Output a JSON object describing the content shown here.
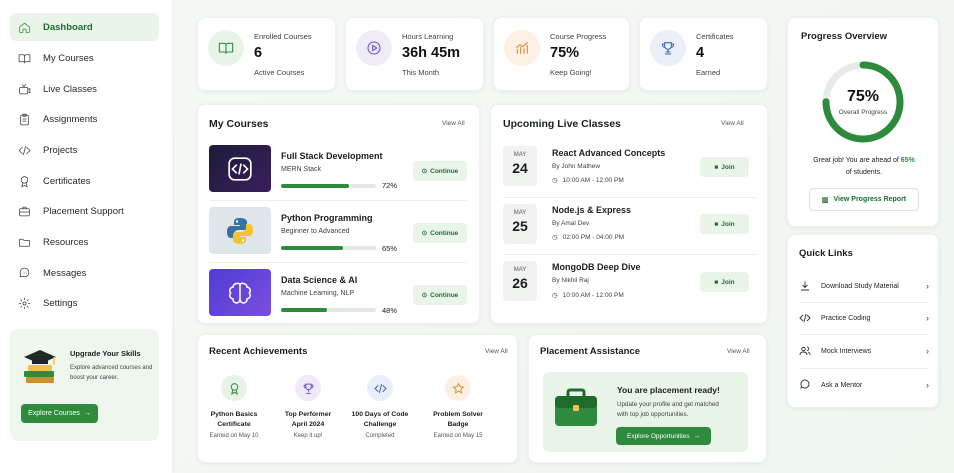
{
  "sidebar": {
    "items": [
      {
        "label": "Dashboard",
        "icon": "home-icon",
        "active": true
      },
      {
        "label": "My Courses",
        "icon": "book-icon"
      },
      {
        "label": "Live Classes",
        "icon": "tv-icon"
      },
      {
        "label": "Assignments",
        "icon": "clipboard-icon"
      },
      {
        "label": "Projects",
        "icon": "code-icon"
      },
      {
        "label": "Certificates",
        "icon": "award-icon"
      },
      {
        "label": "Placement Support",
        "icon": "briefcase-icon"
      },
      {
        "label": "Resources",
        "icon": "folder-icon"
      },
      {
        "label": "Messages",
        "icon": "chat-icon"
      },
      {
        "label": "Settings",
        "icon": "gear-icon"
      }
    ],
    "upgrade": {
      "title": "Upgrade Your Skills",
      "text": "Explore advanced courses and boost your career.",
      "button": "Explore Courses"
    }
  },
  "stats": [
    {
      "label": "Enrolled Courses",
      "value": "6",
      "sub": "Active Courses",
      "icon": "book-icon",
      "color": "#e9f4e9"
    },
    {
      "label": "Hours Learning",
      "value": "36h 45m",
      "sub": "This Month",
      "icon": "play-circle-icon",
      "color": "#efecf8"
    },
    {
      "label": "Course Progress",
      "value": "75%",
      "sub": "Keep Going!",
      "icon": "bar-chart-icon",
      "color": "#fdf1e6"
    },
    {
      "label": "Certificates",
      "value": "4",
      "sub": "Earned",
      "icon": "trophy-icon",
      "color": "#eaf0fa"
    }
  ],
  "my_courses": {
    "title": "My Courses",
    "view_all": "View All",
    "continue_label": "Continue",
    "items": [
      {
        "title": "Full Stack Development",
        "sub": "MERN Stack",
        "progress": 72,
        "progress_label": "72%"
      },
      {
        "title": "Python Programming",
        "sub": "Beginner to Advanced",
        "progress": 65,
        "progress_label": "65%"
      },
      {
        "title": "Data Science & AI",
        "sub": "Machine Learning, NLP",
        "progress": 48,
        "progress_label": "48%"
      }
    ]
  },
  "live_classes": {
    "title": "Upcoming Live Classes",
    "view_all": "View All",
    "join_label": "Join",
    "items": [
      {
        "month": "MAY",
        "day": "24",
        "title": "React Advanced Concepts",
        "by": "By John Mathew",
        "time": "10:00 AM - 12:00 PM"
      },
      {
        "month": "MAY",
        "day": "25",
        "title": "Node.js & Express",
        "by": "By Amal Dev",
        "time": "02:00 PM - 04:00 PM"
      },
      {
        "month": "MAY",
        "day": "26",
        "title": "MongoDB Deep Dive",
        "by": "By Nikhil Raj",
        "time": "10:00 AM - 12:00 PM"
      }
    ]
  },
  "progress_overview": {
    "title": "Progress Overview",
    "percent": 75,
    "percent_label": "75%",
    "ring_label": "Overall Progress",
    "message": "Great job! You are ahead of ",
    "message_highlight": "65%",
    "message_end": "of students.",
    "button": "View Progress Report"
  },
  "quick_links": {
    "title": "Quick Links",
    "items": [
      {
        "label": "Download Study Material",
        "icon": "download-icon"
      },
      {
        "label": "Practice Coding",
        "icon": "code-icon"
      },
      {
        "label": "Mock Interviews",
        "icon": "users-icon"
      },
      {
        "label": "Ask a Mentor",
        "icon": "chat-icon"
      }
    ]
  },
  "achievements": {
    "title": "Recent Achievements",
    "view_all": "View All",
    "items": [
      {
        "title1": "Python Basics",
        "title2": "Certificate",
        "sub": "Earned on May 10",
        "icon": "award-icon",
        "color": "#e6f3e6"
      },
      {
        "title1": "Top Performer",
        "title2": "April 2024",
        "sub": "Keep it up!",
        "icon": "trophy-icon",
        "color": "#efe9f8"
      },
      {
        "title1": "100 Days of Code",
        "title2": "Challenge",
        "sub": "Completed",
        "icon": "code-icon",
        "color": "#e8eefa"
      },
      {
        "title1": "Problem Solver",
        "title2": "Badge",
        "sub": "Earned on May 15",
        "icon": "star-icon",
        "color": "#fdf0e3"
      }
    ]
  },
  "placement": {
    "title": "Placement Assistance",
    "view_all": "View All",
    "heading": "You are placement ready!",
    "text1": "Update your profile and get matched",
    "text2": "with top job opportunities.",
    "button": "Explore Opportunities"
  }
}
